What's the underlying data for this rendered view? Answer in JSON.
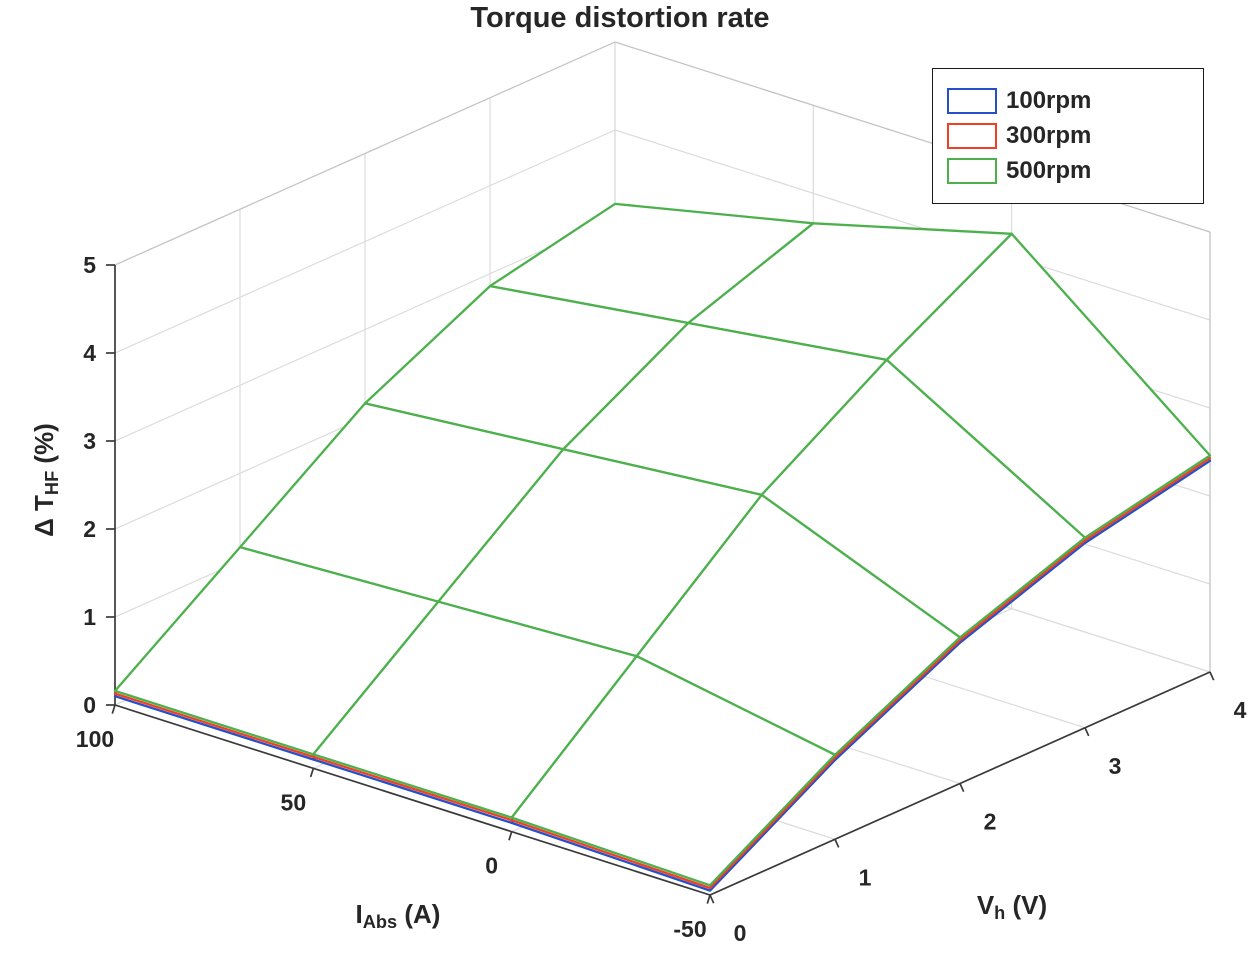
{
  "title": "Torque distortion rate",
  "colors": {
    "text": "#262626",
    "grid": "#dcdcdc",
    "box": "#c4c4c4",
    "axis": "#3a3a3a",
    "face": "#ffffff"
  },
  "legend": {
    "entries": [
      {
        "label": "100rpm",
        "color": "#2750c8"
      },
      {
        "label": "300rpm",
        "color": "#ef4023"
      },
      {
        "label": "500rpm",
        "color": "#4cb04c"
      }
    ]
  },
  "axes": {
    "x": {
      "label_main": "I",
      "label_sub": "Abs",
      "label_unit": " (A)",
      "ticks": [
        100,
        50,
        0,
        -50
      ],
      "range": [
        -50,
        100
      ]
    },
    "y": {
      "label_main": "V",
      "label_sub": "h",
      "label_unit": " (V)",
      "ticks": [
        0,
        1,
        2,
        3,
        4
      ],
      "range": [
        0,
        4
      ]
    },
    "z": {
      "label_main": "Δ T",
      "label_sub": "HF",
      "label_unit": " (%)",
      "ticks": [
        0,
        1,
        2,
        3,
        4,
        5
      ],
      "range": [
        0,
        5
      ]
    }
  },
  "chart_data": {
    "type": "surface",
    "title": "Torque distortion rate",
    "xlabel": "I_Abs (A)",
    "ylabel": "V_h (V)",
    "zlabel": "Δ T_HF (%)",
    "grid": true,
    "legend_position": "top-right",
    "x_I_Abs": [
      100,
      50,
      0,
      -50
    ],
    "y_V_h": [
      0,
      1,
      2,
      3,
      4
    ],
    "zlim": [
      0,
      5
    ],
    "series": [
      {
        "name": "100rpm",
        "color": "#2750c8",
        "z": [
          [
            0.1,
            1.1,
            2.1,
            2.8,
            3.1
          ],
          [
            0.1,
            1.2,
            2.3,
            3.1,
            3.6
          ],
          [
            0.1,
            1.3,
            2.5,
            3.4,
            4.2
          ],
          [
            0.05,
            0.9,
            1.6,
            2.1,
            2.4
          ]
        ]
      },
      {
        "name": "300rpm",
        "color": "#ef4023",
        "z": [
          [
            0.13,
            1.13,
            2.13,
            2.83,
            3.13
          ],
          [
            0.13,
            1.23,
            2.33,
            3.13,
            3.63
          ],
          [
            0.13,
            1.33,
            2.53,
            3.43,
            4.23
          ],
          [
            0.08,
            0.93,
            1.63,
            2.13,
            2.43
          ]
        ]
      },
      {
        "name": "500rpm",
        "color": "#4cb04c",
        "z": [
          [
            0.16,
            1.16,
            2.16,
            2.86,
            3.16
          ],
          [
            0.16,
            1.26,
            2.36,
            3.16,
            3.66
          ],
          [
            0.16,
            1.36,
            2.56,
            3.46,
            4.26
          ],
          [
            0.11,
            0.96,
            1.66,
            2.16,
            2.46
          ]
        ]
      }
    ]
  }
}
